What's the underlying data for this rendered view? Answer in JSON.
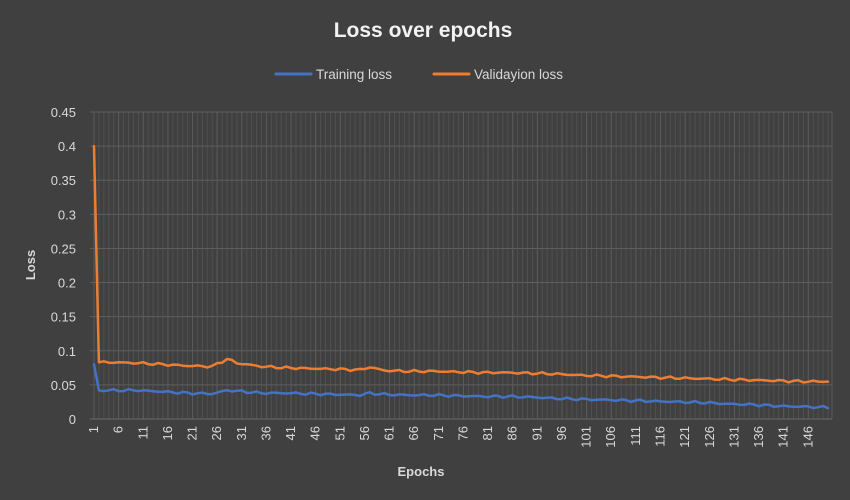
{
  "chart_data": {
    "type": "line",
    "title": "Loss over epochs",
    "xlabel": "Epochs",
    "ylabel": "Loss",
    "ylim": [
      0,
      0.45
    ],
    "y_ticks": [
      "0",
      "0.05",
      "0.1",
      "0.15",
      "0.2",
      "0.25",
      "0.3",
      "0.35",
      "0.4",
      "0.45"
    ],
    "x_ticks": [
      "1",
      "6",
      "11",
      "16",
      "21",
      "26",
      "31",
      "36",
      "41",
      "46",
      "51",
      "56",
      "61",
      "66",
      "71",
      "76",
      "81",
      "86",
      "91",
      "96",
      "101",
      "106",
      "111",
      "116",
      "121",
      "126",
      "131",
      "136",
      "141",
      "146"
    ],
    "x_range": [
      1,
      150
    ],
    "grid": "major and minor gridlines",
    "legend_position": "top",
    "x_keypoints": [
      1,
      2,
      5,
      10,
      15,
      20,
      25,
      28,
      30,
      35,
      40,
      45,
      50,
      55,
      57,
      60,
      65,
      70,
      75,
      80,
      85,
      90,
      95,
      100,
      105,
      110,
      115,
      120,
      125,
      130,
      135,
      140,
      145,
      150
    ],
    "series": [
      {
        "name": "Training loss",
        "color": "#4472c4",
        "values": [
          0.08,
          0.042,
          0.042,
          0.042,
          0.04,
          0.038,
          0.037,
          0.042,
          0.041,
          0.038,
          0.038,
          0.037,
          0.036,
          0.035,
          0.038,
          0.036,
          0.035,
          0.035,
          0.034,
          0.033,
          0.033,
          0.032,
          0.03,
          0.029,
          0.028,
          0.027,
          0.026,
          0.025,
          0.024,
          0.022,
          0.021,
          0.019,
          0.018,
          0.017
        ]
      },
      {
        "name": "Validayion loss",
        "color": "#ed7d31",
        "values": [
          0.4,
          0.083,
          0.083,
          0.082,
          0.08,
          0.078,
          0.077,
          0.088,
          0.082,
          0.077,
          0.075,
          0.074,
          0.073,
          0.072,
          0.076,
          0.071,
          0.07,
          0.07,
          0.069,
          0.068,
          0.068,
          0.067,
          0.066,
          0.064,
          0.063,
          0.062,
          0.061,
          0.06,
          0.059,
          0.058,
          0.057,
          0.056,
          0.055,
          0.055
        ]
      }
    ]
  }
}
